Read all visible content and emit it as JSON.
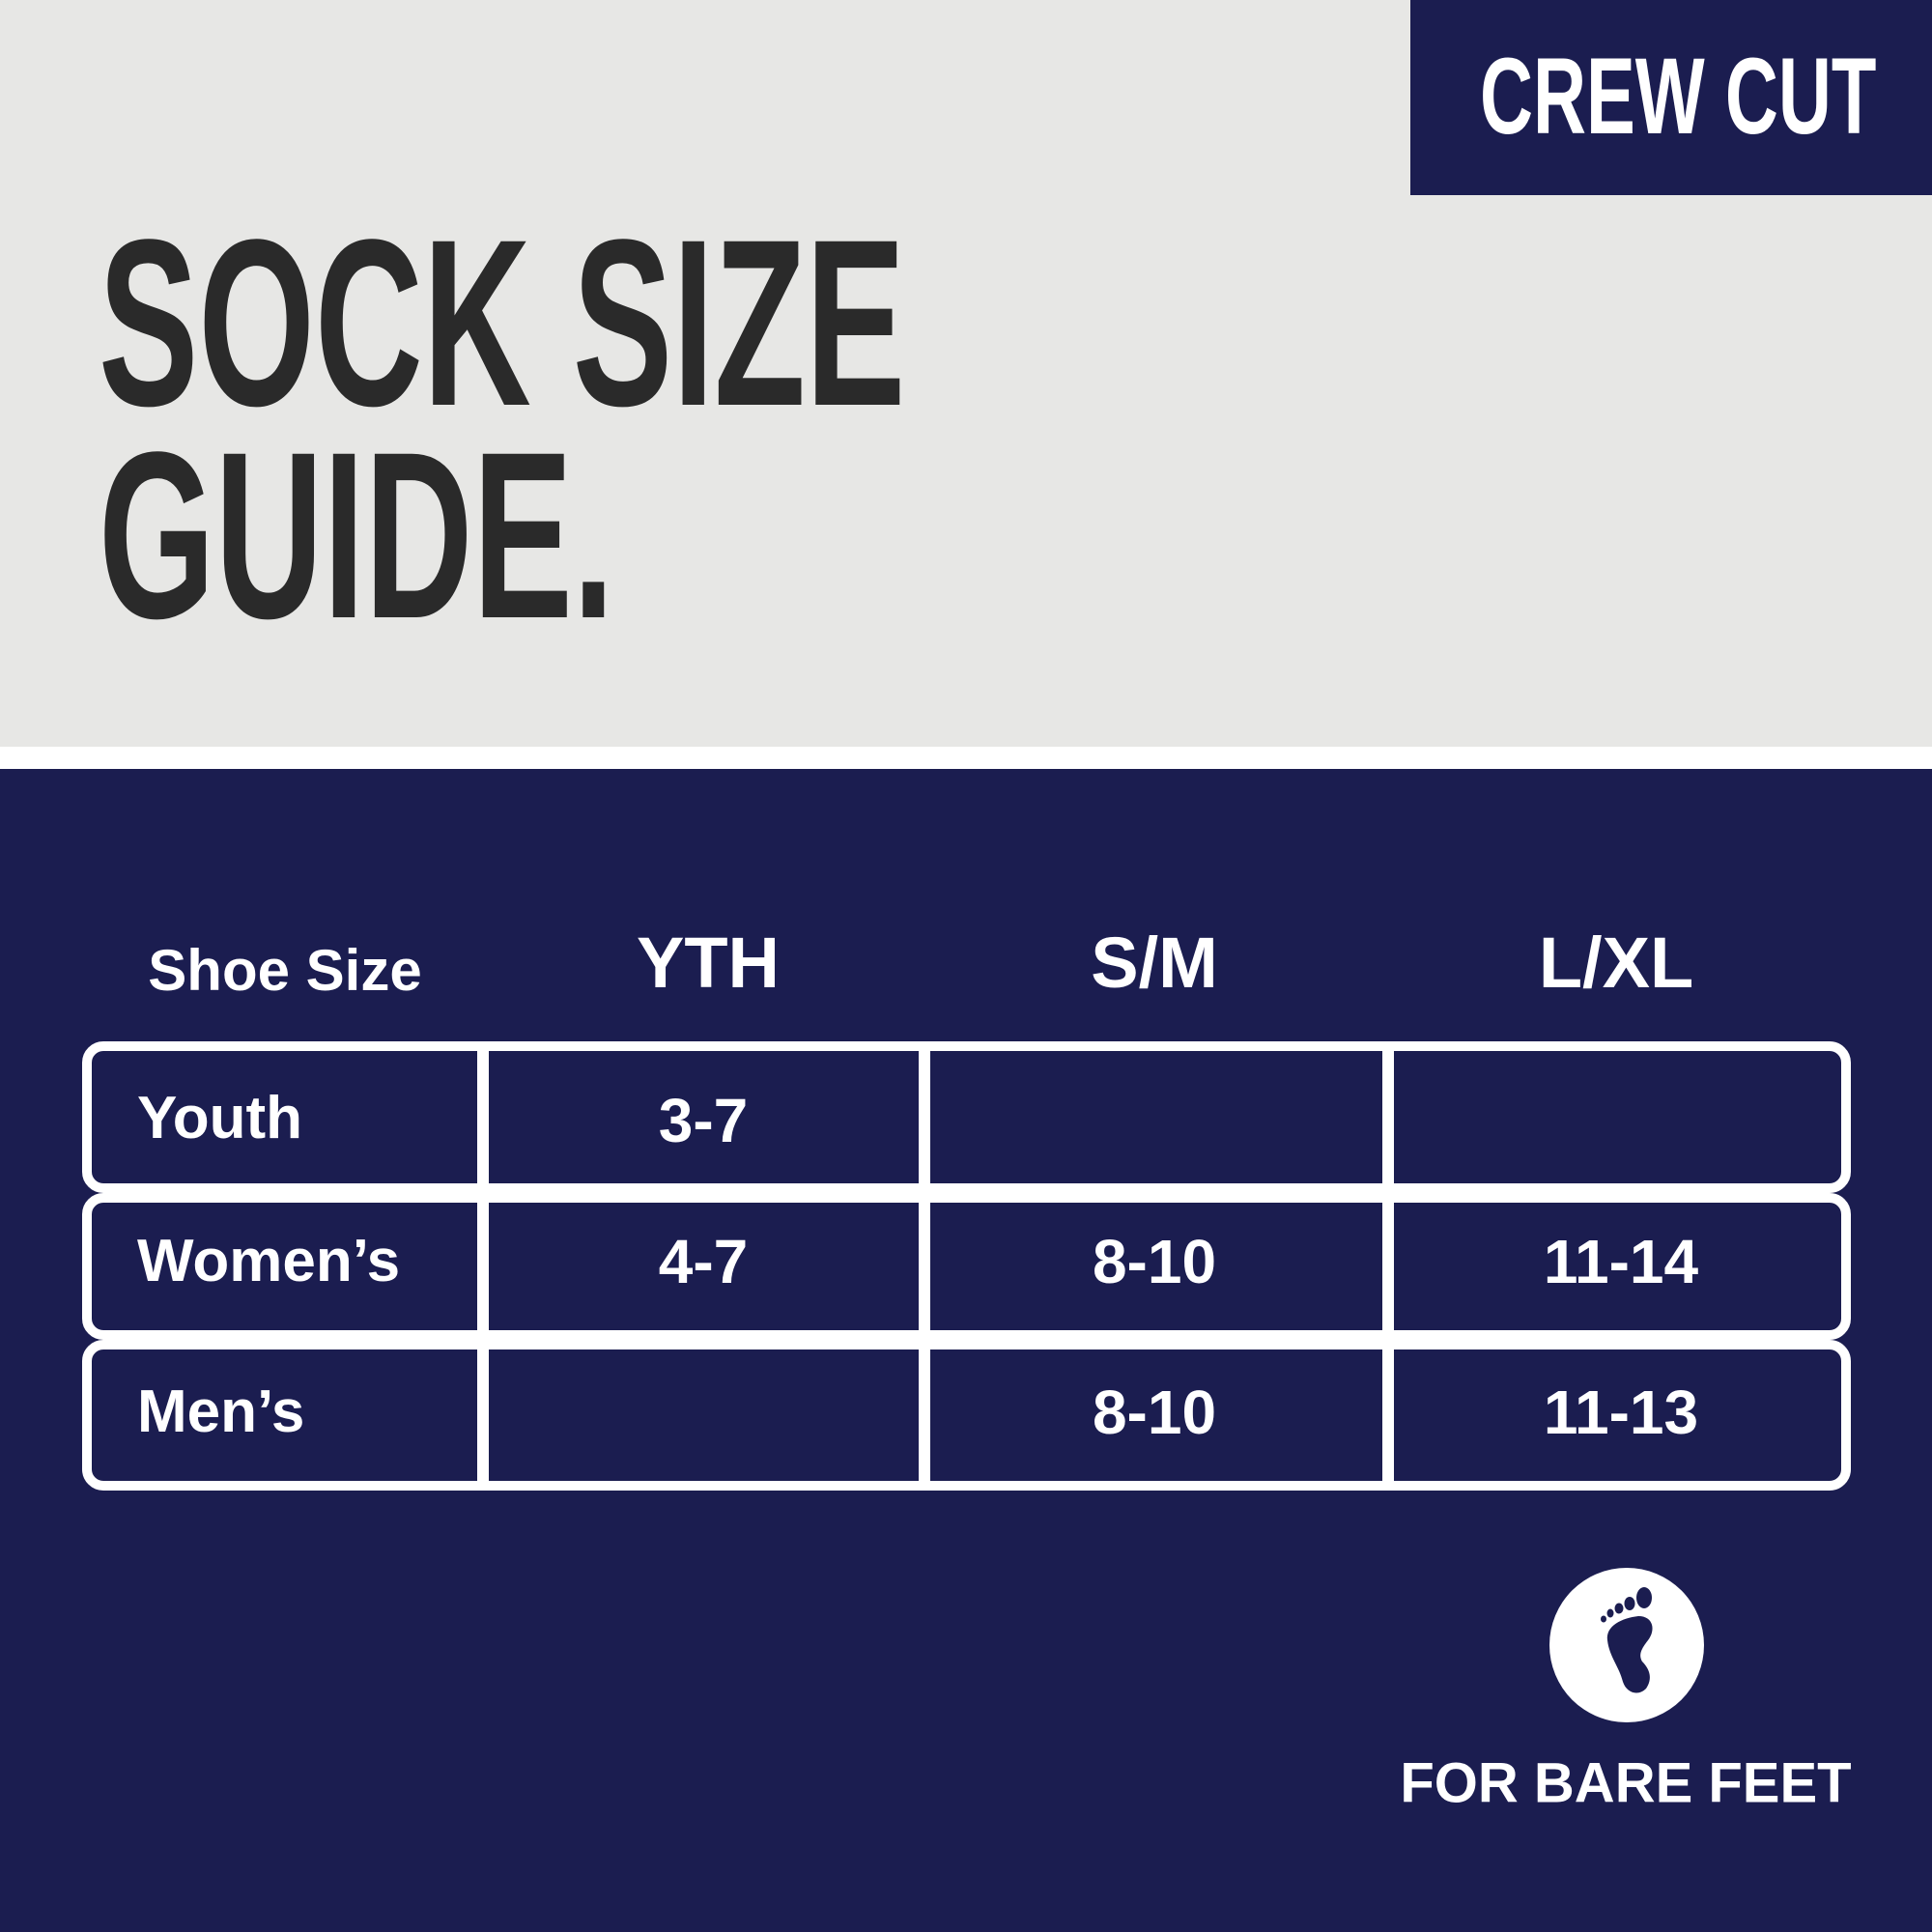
{
  "badge": {
    "label": "CREW CUT"
  },
  "title": {
    "line1": "SOCK SIZE",
    "line2": "GUIDE."
  },
  "table": {
    "headers": [
      "Shoe Size",
      "YTH",
      "S/M",
      "L/XL"
    ],
    "rows": [
      {
        "label": "Youth",
        "cells": [
          "3-7",
          "",
          ""
        ]
      },
      {
        "label": "Women’s",
        "cells": [
          "4-7",
          "8-10",
          "11-14"
        ]
      },
      {
        "label": "Men’s",
        "cells": [
          "",
          "8-10",
          "11-13"
        ]
      }
    ]
  },
  "footer": {
    "icon": "bare-foot-icon",
    "label": "FOR BARE FEET"
  },
  "colors": {
    "navy": "#1b1d50",
    "light_gray": "#e7e7e5",
    "title_text": "#2a2a2a",
    "white": "#ffffff"
  }
}
